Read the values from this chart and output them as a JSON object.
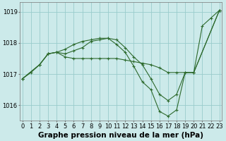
{
  "title": "Graphe pression niveau de la mer (hPa)",
  "line_color": "#2d6a2d",
  "bg_color": "#cceaea",
  "grid_color": "#99cccc",
  "text_color": "#000000",
  "ylim": [
    1015.5,
    1019.3
  ],
  "yticks": [
    1016,
    1017,
    1018,
    1019
  ],
  "title_fontsize": 7.5,
  "tick_fontsize": 6,
  "series": [
    {
      "x": [
        0,
        1,
        2,
        3,
        4,
        5,
        6,
        7,
        8,
        9,
        10,
        11,
        12,
        13,
        14,
        15,
        16,
        17,
        18,
        19,
        20,
        21,
        22,
        23
      ],
      "y": [
        1016.85,
        1017.05,
        1017.3,
        1017.65,
        1017.7,
        1017.8,
        1017.95,
        1018.05,
        1018.1,
        1018.15,
        1018.15,
        1017.95,
        1017.7,
        1017.25,
        1016.75,
        1016.5,
        1015.8,
        1015.65,
        1015.85,
        1017.05,
        1017.05,
        1018.55,
        1018.8,
        1019.05
      ]
    },
    {
      "x": [
        0,
        2,
        3,
        4,
        5,
        6,
        7,
        8,
        9,
        10,
        11,
        12,
        13,
        14,
        15,
        16,
        17,
        18,
        19,
        20,
        23
      ],
      "y": [
        1016.85,
        1017.3,
        1017.65,
        1017.7,
        1017.65,
        1017.75,
        1017.85,
        1018.05,
        1018.1,
        1018.15,
        1018.1,
        1017.85,
        1017.55,
        1017.3,
        1016.85,
        1016.35,
        1016.15,
        1016.35,
        1017.05,
        1017.05,
        1019.05
      ]
    },
    {
      "x": [
        0,
        2,
        3,
        4,
        5,
        6,
        7,
        8,
        9,
        10,
        11,
        12,
        13,
        14,
        15,
        16,
        17,
        18,
        20,
        23
      ],
      "y": [
        1016.85,
        1017.3,
        1017.65,
        1017.7,
        1017.55,
        1017.5,
        1017.5,
        1017.5,
        1017.5,
        1017.5,
        1017.5,
        1017.45,
        1017.4,
        1017.35,
        1017.3,
        1017.2,
        1017.05,
        1017.05,
        1017.05,
        1019.05
      ]
    }
  ]
}
